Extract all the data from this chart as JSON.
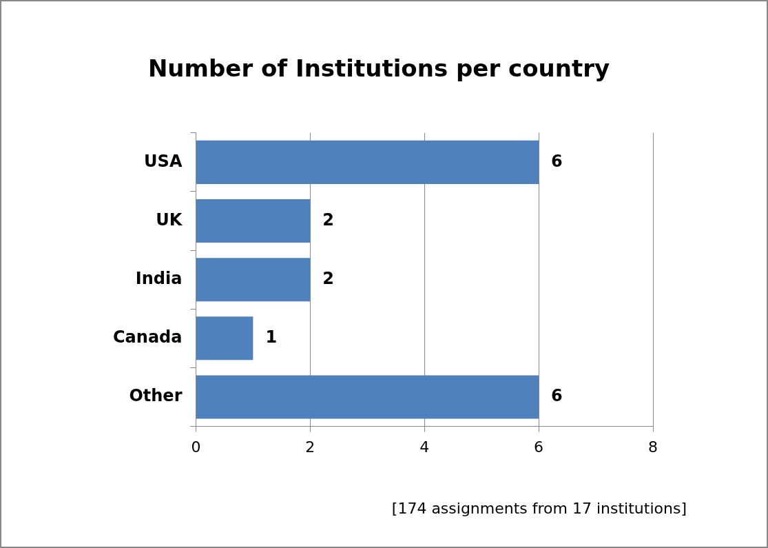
{
  "chart_data": {
    "type": "bar",
    "orientation": "horizontal",
    "title": "Number of Institutions per country",
    "categories": [
      "USA",
      "UK",
      "India",
      "Canada",
      "Other"
    ],
    "values": [
      6,
      2,
      2,
      1,
      6
    ],
    "color": "#4f81bd",
    "xlim": [
      0,
      8
    ],
    "xticks": [
      0,
      2,
      4,
      6,
      8
    ],
    "grid": "x",
    "data_labels": true,
    "annotations": [
      "[174 assignments from 17 institutions]"
    ]
  }
}
